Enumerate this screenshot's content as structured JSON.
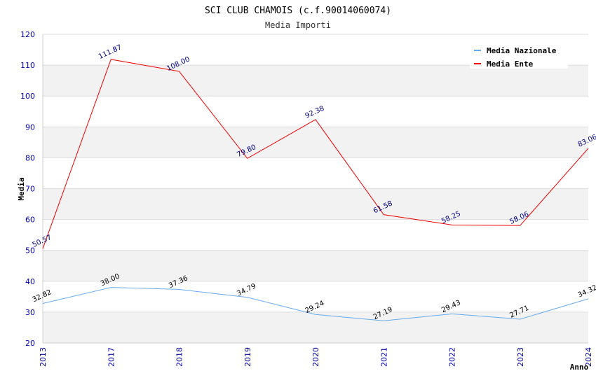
{
  "chart_data": {
    "type": "line",
    "title": "SCI CLUB CHAMOIS (c.f.90014060074)",
    "subtitle": "Media Importi",
    "xlabel": "Anno",
    "ylabel": "Media",
    "ylim": [
      20,
      120
    ],
    "yticks": [
      20,
      30,
      40,
      50,
      60,
      70,
      80,
      90,
      100,
      110,
      120
    ],
    "categories": [
      "2013",
      "2017",
      "2018",
      "2019",
      "2020",
      "2021",
      "2022",
      "2023",
      "2024"
    ],
    "series": [
      {
        "name": "Media Nazionale",
        "color": "#66aaee",
        "values": [
          32.82,
          38.0,
          37.36,
          34.79,
          29.24,
          27.19,
          29.43,
          27.71,
          34.32
        ],
        "labels": [
          "32.82",
          "38.00",
          "37.36",
          "34.79",
          "29.24",
          "27.19",
          "29.43",
          "27.71",
          "34.32"
        ]
      },
      {
        "name": "Media Ente",
        "color": "#ee0000",
        "values": [
          50.57,
          111.87,
          108.0,
          79.8,
          92.38,
          61.58,
          58.25,
          58.06,
          83.06
        ],
        "labels": [
          "50.57",
          "111.87",
          "108.00",
          "79.80",
          "92.38",
          "61.58",
          "58.25",
          "58.06",
          "83.06"
        ]
      }
    ],
    "grid": true,
    "legend_position": "top-right",
    "band_colors": [
      "#f2f2f2",
      "#ffffff"
    ]
  }
}
